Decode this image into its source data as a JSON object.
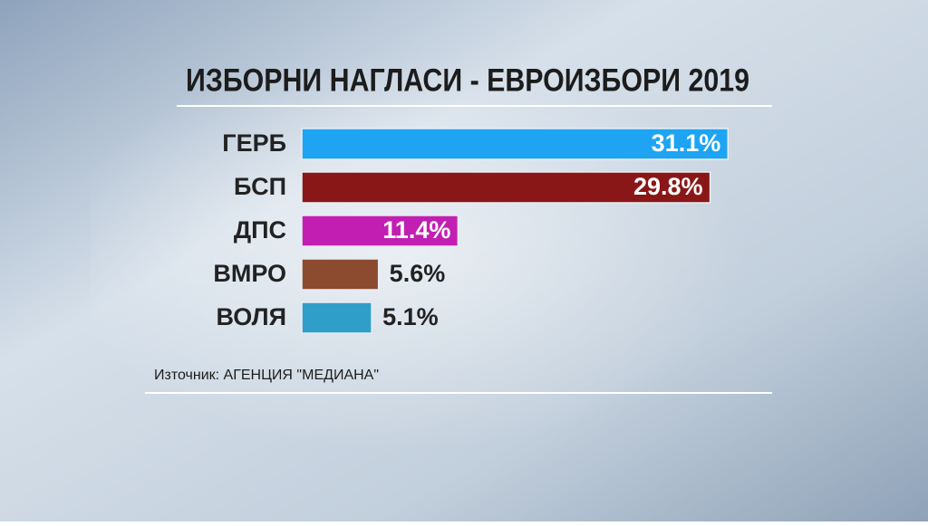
{
  "chart_data": {
    "type": "bar",
    "orientation": "horizontal",
    "title": "ИЗБОРНИ НАГЛАСИ - ЕВРОИЗБОРИ 2019",
    "categories": [
      "ГЕРБ",
      "БСП",
      "ДПС",
      "ВМРО",
      "ВОЛЯ"
    ],
    "values": [
      31.1,
      29.8,
      11.4,
      5.6,
      5.1
    ],
    "value_labels": [
      "31.1%",
      "29.8%",
      "11.4%",
      "5.6%",
      "5.1%"
    ],
    "colors": [
      "#1ea4f2",
      "#8a1717",
      "#c21fb2",
      "#8c4a2f",
      "#2f9fca"
    ],
    "source": "Източник: АГЕНЦИЯ \"МЕДИАНА\""
  }
}
